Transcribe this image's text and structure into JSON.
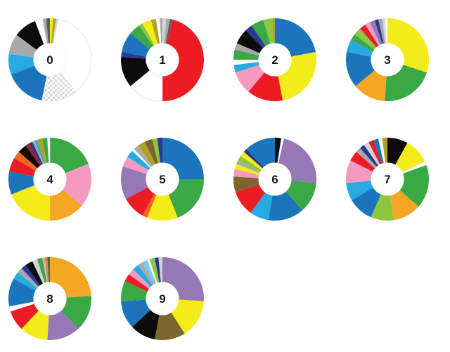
{
  "page": {
    "background": "#ffffff"
  },
  "palette": {
    "red": "#ed1c24",
    "maroon": "#9e1f28",
    "blue": "#1c75bc",
    "navy": "#2b3990",
    "cyan": "#27aae1",
    "lightblue": "#6dcff6",
    "green": "#39a845",
    "lightgreen": "#8dc63f",
    "yellow": "#f3ec1a",
    "olive": "#b3a125",
    "amber": "#f5a623",
    "orange": "#f26522",
    "pink": "#f49ac1",
    "purple": "#9678b6",
    "brown": "#7d662e",
    "black": "#0c0c0c",
    "darkgray": "#58595b",
    "gray": "#a7a9ac",
    "lightgray": "#d1d3d4",
    "white": "#ffffff"
  },
  "chart_data": {
    "type": "pie",
    "subtype": "donut",
    "units": "percent",
    "layout": {
      "columns": 4,
      "outer_radius": 59,
      "inner_radius": 23.5,
      "start_angle_deg": 0,
      "direction": "clockwise"
    },
    "charts": [
      {
        "label": "0",
        "segments": [
          {
            "color": "yellow",
            "value": 1.2
          },
          {
            "color": "olive",
            "value": 1.2
          },
          {
            "color": "lightgray",
            "value": 0.8
          },
          {
            "color": "white",
            "value": 36
          },
          {
            "color": "checker",
            "value": 14
          },
          {
            "color": "blue",
            "value": 16
          },
          {
            "color": "cyan",
            "value": 8
          },
          {
            "color": "gray",
            "value": 8
          },
          {
            "color": "black",
            "value": 9
          },
          {
            "color": "white",
            "value": 3
          },
          {
            "color": "gray",
            "value": 1.4
          },
          {
            "color": "darkgray",
            "value": 1.4
          }
        ]
      },
      {
        "label": "1",
        "segments": [
          {
            "color": "lightgray",
            "value": 1.5
          },
          {
            "color": "gray",
            "value": 1.5
          },
          {
            "color": "darkgray",
            "value": 1
          },
          {
            "color": "red",
            "value": 46
          },
          {
            "color": "white",
            "value": 14
          },
          {
            "color": "black",
            "value": 12
          },
          {
            "color": "navy",
            "value": 2
          },
          {
            "color": "blue",
            "value": 8
          },
          {
            "color": "green",
            "value": 4.5
          },
          {
            "color": "lightgreen",
            "value": 1.5
          },
          {
            "color": "yellow",
            "value": 3.5
          },
          {
            "color": "olive",
            "value": 2
          },
          {
            "color": "white",
            "value": 1.5
          },
          {
            "color": "gray",
            "value": 1
          }
        ]
      },
      {
        "label": "2",
        "segments": [
          {
            "color": "blue",
            "value": 22
          },
          {
            "color": "yellow",
            "value": 25
          },
          {
            "color": "red",
            "value": 14
          },
          {
            "color": "pink",
            "value": 9
          },
          {
            "color": "cyan",
            "value": 3
          },
          {
            "color": "white",
            "value": 2
          },
          {
            "color": "green",
            "value": 4
          },
          {
            "color": "gray",
            "value": 2.5
          },
          {
            "color": "black",
            "value": 6
          },
          {
            "color": "navy",
            "value": 3
          },
          {
            "color": "green",
            "value": 5
          },
          {
            "color": "lightgreen",
            "value": 3.5
          },
          {
            "color": "olive",
            "value": 1
          }
        ]
      },
      {
        "label": "3",
        "segments": [
          {
            "color": "yellow",
            "value": 30
          },
          {
            "color": "green",
            "value": 21
          },
          {
            "color": "amber",
            "value": 13
          },
          {
            "color": "blue",
            "value": 14
          },
          {
            "color": "cyan",
            "value": 5
          },
          {
            "color": "green",
            "value": 2.5
          },
          {
            "color": "lightgreen",
            "value": 3
          },
          {
            "color": "red",
            "value": 2.5
          },
          {
            "color": "pink",
            "value": 2
          },
          {
            "color": "purple",
            "value": 2
          },
          {
            "color": "navy",
            "value": 1.5
          },
          {
            "color": "gray",
            "value": 1.5
          },
          {
            "color": "lightgray",
            "value": 1
          },
          {
            "color": "white",
            "value": 1
          }
        ]
      },
      {
        "label": "4",
        "segments": [
          {
            "color": "green",
            "value": 19
          },
          {
            "color": "pink",
            "value": 17
          },
          {
            "color": "amber",
            "value": 14
          },
          {
            "color": "yellow",
            "value": 19
          },
          {
            "color": "blue",
            "value": 9
          },
          {
            "color": "red",
            "value": 5.5
          },
          {
            "color": "orange",
            "value": 3
          },
          {
            "color": "black",
            "value": 3.5
          },
          {
            "color": "maroon",
            "value": 1.5
          },
          {
            "color": "navy",
            "value": 1.5
          },
          {
            "color": "gray",
            "value": 1
          },
          {
            "color": "cyan",
            "value": 1
          },
          {
            "color": "olive",
            "value": 2
          },
          {
            "color": "green",
            "value": 2
          },
          {
            "color": "white",
            "value": 1
          }
        ]
      },
      {
        "label": "5",
        "segments": [
          {
            "color": "blue",
            "value": 25
          },
          {
            "color": "green",
            "value": 19
          },
          {
            "color": "yellow",
            "value": 12
          },
          {
            "color": "orange",
            "value": 2
          },
          {
            "color": "red",
            "value": 9
          },
          {
            "color": "purple",
            "value": 13
          },
          {
            "color": "pink",
            "value": 4
          },
          {
            "color": "cyan",
            "value": 3
          },
          {
            "color": "white",
            "value": 1
          },
          {
            "color": "gray",
            "value": 2
          },
          {
            "color": "olive",
            "value": 3
          },
          {
            "color": "brown",
            "value": 3
          },
          {
            "color": "lightgreen",
            "value": 2
          },
          {
            "color": "navy",
            "value": 2
          }
        ]
      },
      {
        "label": "6",
        "segments": [
          {
            "color": "black",
            "value": 2.5
          },
          {
            "color": "white",
            "value": 1
          },
          {
            "color": "purple",
            "value": 23
          },
          {
            "color": "green",
            "value": 12
          },
          {
            "color": "blue",
            "value": 14
          },
          {
            "color": "cyan",
            "value": 7.5
          },
          {
            "color": "red",
            "value": 10
          },
          {
            "color": "brown",
            "value": 6
          },
          {
            "color": "pink",
            "value": 3
          },
          {
            "color": "yellow",
            "value": 2
          },
          {
            "color": "gray",
            "value": 1.5
          },
          {
            "color": "lightgreen",
            "value": 2
          },
          {
            "color": "yellow",
            "value": 2
          },
          {
            "color": "navy",
            "value": 1.5
          },
          {
            "color": "blue",
            "value": 12
          }
        ]
      },
      {
        "label": "7",
        "segments": [
          {
            "color": "black",
            "value": 8
          },
          {
            "color": "yellow",
            "value": 10
          },
          {
            "color": "white",
            "value": 1.5
          },
          {
            "color": "green",
            "value": 17
          },
          {
            "color": "amber",
            "value": 11
          },
          {
            "color": "lightgreen",
            "value": 9
          },
          {
            "color": "blue",
            "value": 10
          },
          {
            "color": "cyan",
            "value": 7
          },
          {
            "color": "pink",
            "value": 9
          },
          {
            "color": "red",
            "value": 4
          },
          {
            "color": "gray",
            "value": 2
          },
          {
            "color": "navy",
            "value": 2
          },
          {
            "color": "lightgray",
            "value": 2
          },
          {
            "color": "red",
            "value": 2
          },
          {
            "color": "blue",
            "value": 2
          },
          {
            "color": "white",
            "value": 1.5
          },
          {
            "color": "olive",
            "value": 2
          }
        ]
      },
      {
        "label": "8",
        "segments": [
          {
            "color": "amber",
            "value": 24
          },
          {
            "color": "green",
            "value": 14
          },
          {
            "color": "purple",
            "value": 13
          },
          {
            "color": "yellow",
            "value": 11
          },
          {
            "color": "red",
            "value": 8
          },
          {
            "color": "white",
            "value": 2
          },
          {
            "color": "blue",
            "value": 11
          },
          {
            "color": "cyan",
            "value": 3
          },
          {
            "color": "gray",
            "value": 2
          },
          {
            "color": "navy",
            "value": 2
          },
          {
            "color": "black",
            "value": 3
          },
          {
            "color": "lightgray",
            "value": 2
          },
          {
            "color": "green",
            "value": 2
          },
          {
            "color": "pink",
            "value": 1
          },
          {
            "color": "olive",
            "value": 1
          },
          {
            "color": "darkgray",
            "value": 1
          }
        ]
      },
      {
        "label": "9",
        "segments": [
          {
            "color": "purple",
            "value": 26
          },
          {
            "color": "yellow",
            "value": 15
          },
          {
            "color": "brown",
            "value": 12
          },
          {
            "color": "black",
            "value": 10
          },
          {
            "color": "blue",
            "value": 11
          },
          {
            "color": "green",
            "value": 8
          },
          {
            "color": "red",
            "value": 3
          },
          {
            "color": "pink",
            "value": 2.5
          },
          {
            "color": "cyan",
            "value": 2.5
          },
          {
            "color": "gray",
            "value": 2
          },
          {
            "color": "lightblue",
            "value": 2
          },
          {
            "color": "white",
            "value": 1
          },
          {
            "color": "lightgreen",
            "value": 2
          },
          {
            "color": "navy",
            "value": 1.5
          },
          {
            "color": "lightgray",
            "value": 1.5
          }
        ]
      }
    ]
  }
}
